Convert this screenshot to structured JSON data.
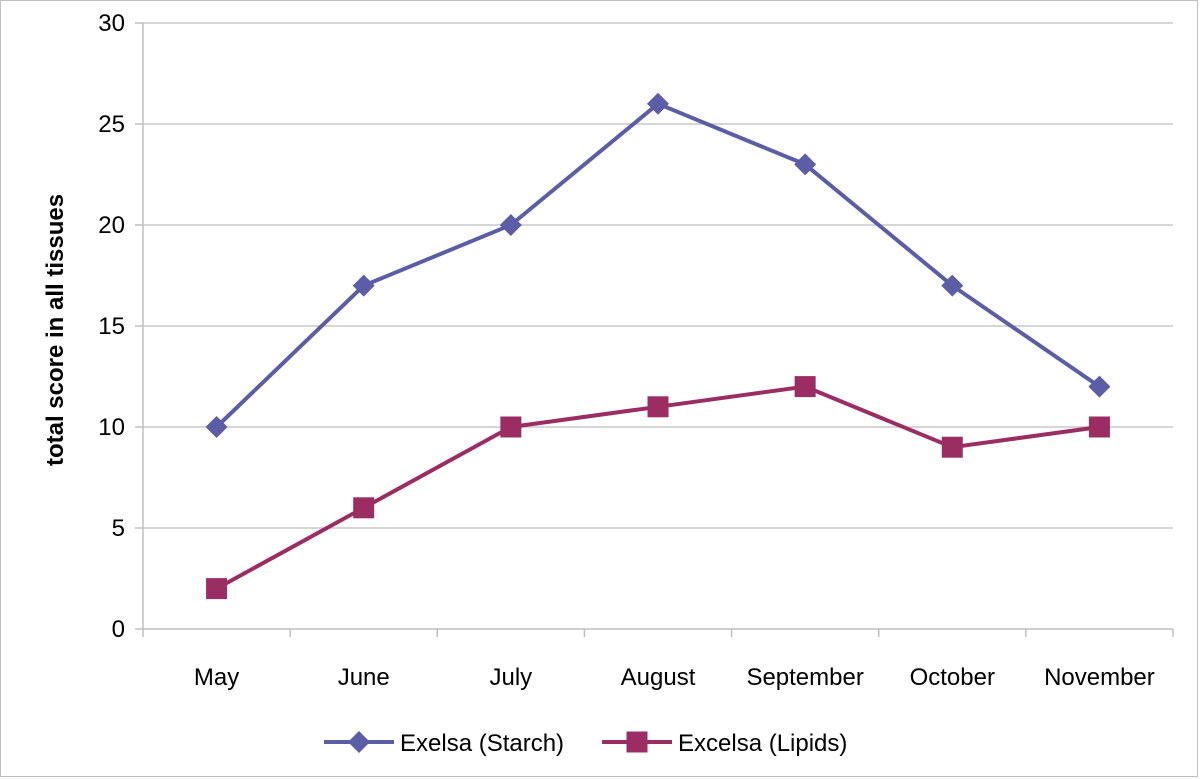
{
  "chart_data": {
    "type": "line",
    "title": "",
    "xlabel": "",
    "ylabel": "total score in all tissues",
    "categories": [
      "May",
      "June",
      "July",
      "August",
      "September",
      "October",
      "November"
    ],
    "ylim": [
      0,
      30
    ],
    "yticks": [
      0,
      5,
      10,
      15,
      20,
      25,
      30
    ],
    "grid": true,
    "legend_position": "bottom",
    "series": [
      {
        "name": "Exelsa (Starch)",
        "values": [
          10,
          17,
          20,
          26,
          23,
          17,
          12
        ],
        "color": "#5b5ea6",
        "marker": "diamond"
      },
      {
        "name": "Excelsa (Lipids)",
        "values": [
          2,
          6,
          10,
          11,
          12,
          9,
          10
        ],
        "color": "#9b2d63",
        "marker": "square"
      }
    ]
  }
}
